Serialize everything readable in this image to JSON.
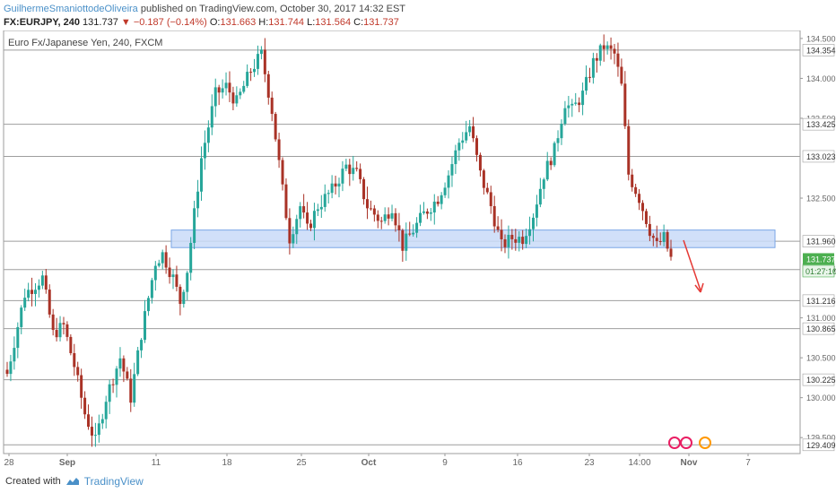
{
  "header": {
    "author": "GuilhermeSmaniottodeOliveira",
    "published": "published on TradingView.com, October 30, 2017 14:32 EST",
    "symbol": "FX:EURJPY, 240",
    "last": "131.737",
    "change": "▼ −0.187 (−0.14%)",
    "o_label": "O:",
    "o": "131.663",
    "h_label": "H:",
    "h": "131.744",
    "l_label": "L:",
    "l": "131.564",
    "c_label": "C:",
    "c": "131.737"
  },
  "footer": {
    "created": "Created with",
    "brand": "TradingView"
  },
  "colors": {
    "up": "#26a69a",
    "down": "#a93226",
    "zone_fill": "#c9daf8",
    "zone_stroke": "#7aa6e6",
    "arrow": "#e53935",
    "price_tag": "#4caf50",
    "axis_text": "#666666"
  },
  "chart_data": {
    "type": "candlestick",
    "title": "Euro Fx/Japanese Yen, 240, FXCM",
    "y_range": [
      129.3,
      134.6
    ],
    "x_ticks": [
      "28",
      "Sep",
      "11",
      "18",
      "25",
      "Oct",
      "9",
      "16",
      "23",
      "14:00",
      "Nov",
      "7"
    ],
    "y_ticks": [
      "134.500",
      "134.000",
      "133.500",
      "132.500",
      "131.000",
      "130.500",
      "130.000",
      "129.500"
    ],
    "levels": [
      {
        "value": 134.354,
        "label": "134.354"
      },
      {
        "value": 133.425,
        "label": "133.425"
      },
      {
        "value": 133.023,
        "label": "133.023"
      },
      {
        "value": 131.96,
        "label": "131.960"
      },
      {
        "value": 131.605,
        "label": "131.605"
      },
      {
        "value": 131.216,
        "label": "131.216"
      },
      {
        "value": 130.865,
        "label": "130.865"
      },
      {
        "value": 130.225,
        "label": "130.225"
      },
      {
        "value": 129.409,
        "label": "129.409"
      }
    ],
    "last_price": {
      "value": 131.737,
      "label": "131.737",
      "countdown": "01:27:10"
    },
    "support_zone": [
      131.88,
      132.1
    ],
    "close_path": [
      [
        0,
        130.3
      ],
      [
        5,
        131.3
      ],
      [
        10,
        131.5
      ],
      [
        13,
        130.8
      ],
      [
        16,
        130.9
      ],
      [
        19,
        130.4
      ],
      [
        22,
        129.8
      ],
      [
        25,
        129.45
      ],
      [
        28,
        130.0
      ],
      [
        32,
        130.5
      ],
      [
        35,
        130.0
      ],
      [
        38,
        130.8
      ],
      [
        42,
        131.7
      ],
      [
        44,
        131.8
      ],
      [
        47,
        131.5
      ],
      [
        49,
        131.2
      ],
      [
        51,
        131.6
      ],
      [
        55,
        133.0
      ],
      [
        59,
        133.8
      ],
      [
        62,
        133.9
      ],
      [
        65,
        133.7
      ],
      [
        69,
        134.1
      ],
      [
        72,
        134.3
      ],
      [
        75,
        133.6
      ],
      [
        78,
        132.6
      ],
      [
        80,
        132.0
      ],
      [
        83,
        132.4
      ],
      [
        85,
        132.1
      ],
      [
        88,
        132.4
      ],
      [
        92,
        132.6
      ],
      [
        96,
        132.9
      ],
      [
        99,
        132.8
      ],
      [
        102,
        132.4
      ],
      [
        106,
        132.2
      ],
      [
        109,
        132.4
      ],
      [
        112,
        131.9
      ],
      [
        115,
        132.1
      ],
      [
        118,
        132.3
      ],
      [
        122,
        132.5
      ],
      [
        125,
        132.8
      ],
      [
        128,
        133.2
      ],
      [
        131,
        133.4
      ],
      [
        134,
        132.8
      ],
      [
        137,
        132.4
      ],
      [
        140,
        131.9
      ],
      [
        143,
        132.0
      ],
      [
        146,
        132.0
      ],
      [
        149,
        132.3
      ],
      [
        152,
        132.8
      ],
      [
        155,
        133.1
      ],
      [
        158,
        133.7
      ],
      [
        160,
        133.6
      ],
      [
        163,
        133.8
      ],
      [
        166,
        134.2
      ],
      [
        169,
        134.4
      ],
      [
        172,
        134.3
      ],
      [
        174,
        133.9
      ],
      [
        176,
        132.8
      ],
      [
        179,
        132.5
      ],
      [
        182,
        132.1
      ],
      [
        184,
        131.9
      ],
      [
        186,
        132.0
      ],
      [
        188,
        131.74
      ]
    ]
  }
}
